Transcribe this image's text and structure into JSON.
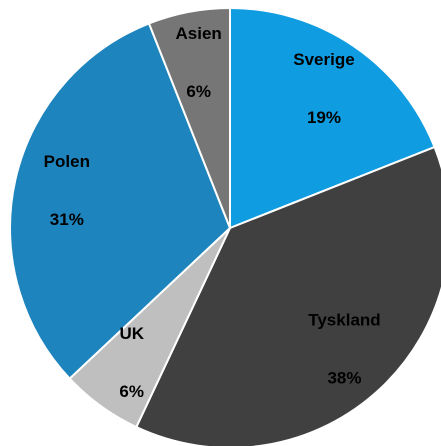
{
  "chart_data": {
    "type": "pie",
    "categories": [
      "Sverige",
      "Tyskland",
      "UK",
      "Polen",
      "Asien"
    ],
    "values": [
      19,
      38,
      6,
      31,
      6
    ],
    "value_labels": [
      "19%",
      "38%",
      "6%",
      "31%",
      "6%"
    ],
    "colors": [
      "#0f9ce0",
      "#404040",
      "#bfbfbf",
      "#1e84bd",
      "#767676"
    ]
  }
}
